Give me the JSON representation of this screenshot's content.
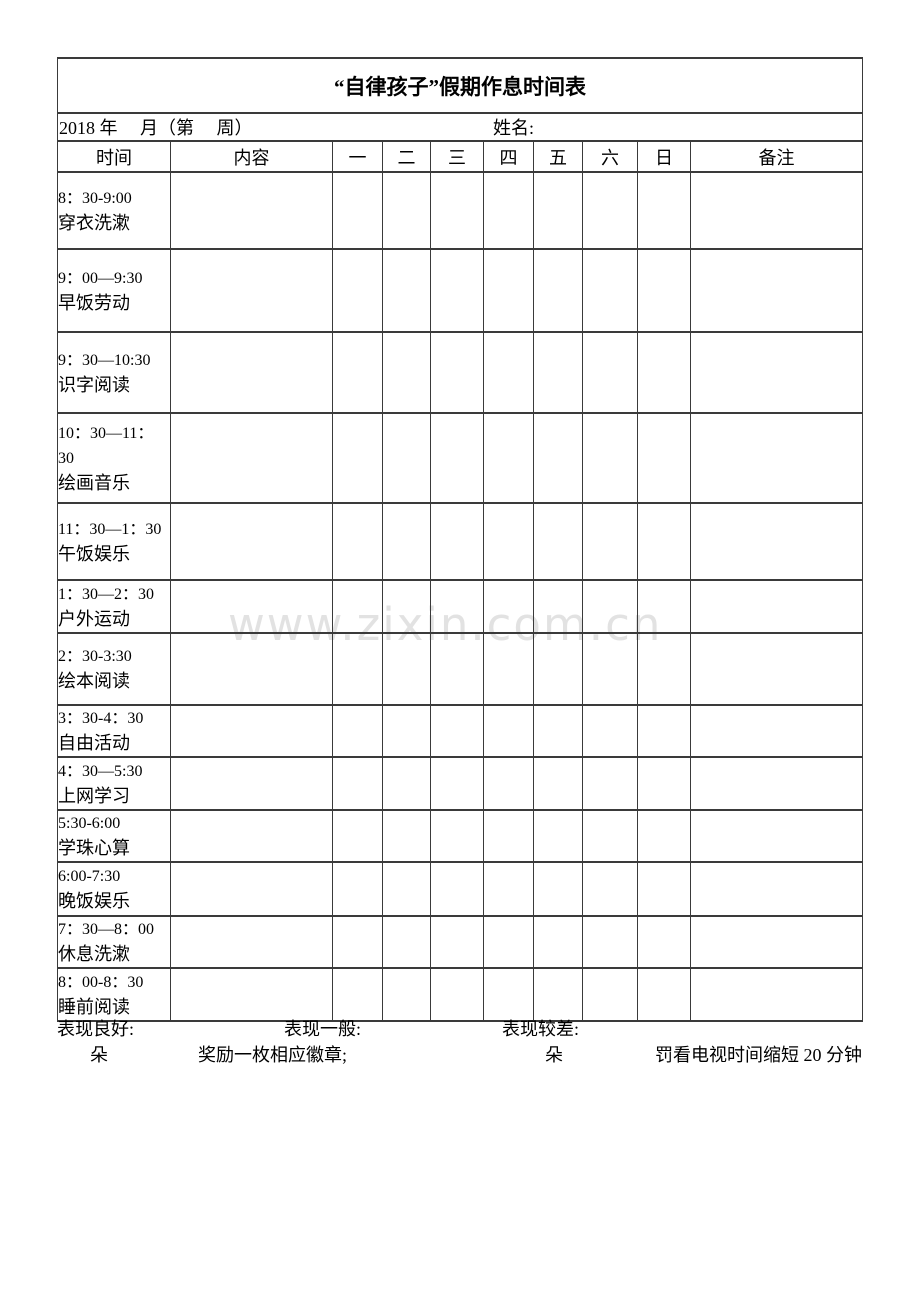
{
  "page": {
    "title": "“自律孩子”假期作息时间表",
    "watermark": "www.zixin.com.cn"
  },
  "info": {
    "date_label": "2018 年　 月（第　 周）",
    "name_label": "姓名:"
  },
  "header": {
    "time": "时间",
    "content": "内容",
    "days": [
      "一",
      "二",
      "三",
      "四",
      "五",
      "六",
      "日"
    ],
    "remark": "备注"
  },
  "rows": [
    {
      "time": "8：30-9:00",
      "activity": "穿衣洗漱"
    },
    {
      "time": "9：00—9:30",
      "activity": "早饭劳动"
    },
    {
      "time": "9：30—10:30",
      "activity": "识字阅读"
    },
    {
      "time": "10：30—11：\n30",
      "activity": "绘画音乐"
    },
    {
      "time": "11：30—1：30",
      "activity": "午饭娱乐"
    },
    {
      "time": "1：30—2：30",
      "activity": "户外运动"
    },
    {
      "time": "2：30-3:30",
      "activity": "绘本阅读"
    },
    {
      "time": "3：30-4：30",
      "activity": "自由活动"
    },
    {
      "time": "4：30—5:30",
      "activity": "上网学习"
    },
    {
      "time": "5:30-6:00",
      "activity": "学珠心算"
    },
    {
      "time": "6:00-7:30",
      "activity": "晚饭娱乐"
    },
    {
      "time": "7：30—8：00",
      "activity": "休息洗漱"
    },
    {
      "time": "8：00-8：30",
      "activity": "睡前阅读"
    }
  ],
  "footer": {
    "good_label": "表现良好:",
    "average_label": "表现一般:",
    "poor_label": "表现较差:",
    "flower_left": "朵",
    "reward_text": "奖励一枚相应徽章;",
    "flower_right": "朵",
    "punishment_text": "罚看电视时间缩短 20 分钟"
  }
}
